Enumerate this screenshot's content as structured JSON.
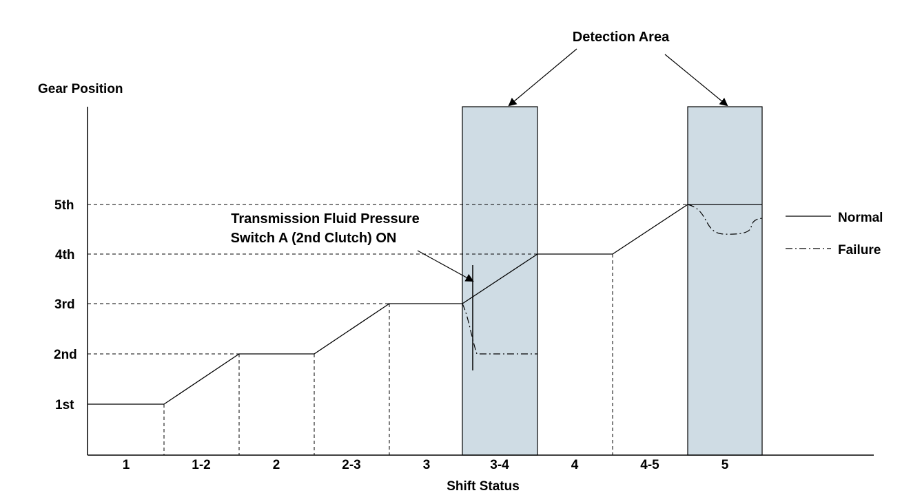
{
  "chart_data": {
    "type": "line",
    "y_title": "Gear Position",
    "x_title": "Shift Status",
    "y_ticks": [
      "1st",
      "2nd",
      "3rd",
      "4th",
      "5th"
    ],
    "x_ticks": [
      "1",
      "1-2",
      "2",
      "2-3",
      "3",
      "3-4",
      "4",
      "4-5",
      "5"
    ],
    "detection_area_label": "Detection Area",
    "detection_area_segments": [
      "3-4",
      "5"
    ],
    "detection_area_color": "#cfdce4",
    "annotation": {
      "line1": "Transmission Fluid Pressure",
      "line2": "Switch A (2nd Clutch) ON"
    },
    "series": [
      {
        "name": "Normal",
        "style": "solid",
        "segments": [
          {
            "status": "1",
            "from": 1,
            "to": 1
          },
          {
            "status": "1-2",
            "from": 1,
            "to": 2
          },
          {
            "status": "2",
            "from": 2,
            "to": 2
          },
          {
            "status": "2-3",
            "from": 2,
            "to": 3
          },
          {
            "status": "3",
            "from": 3,
            "to": 3
          },
          {
            "status": "3-4",
            "from": 3,
            "to": 4
          },
          {
            "status": "4",
            "from": 4,
            "to": 4
          },
          {
            "status": "4-5",
            "from": 4,
            "to": 5
          },
          {
            "status": "5",
            "from": 5,
            "to": 5
          }
        ]
      },
      {
        "name": "Failure",
        "style": "dash-dot",
        "segments": [
          {
            "status": "3-4",
            "from": 3,
            "to": 2
          },
          {
            "status": "5",
            "from": 5,
            "to": 4.4
          }
        ]
      }
    ]
  }
}
